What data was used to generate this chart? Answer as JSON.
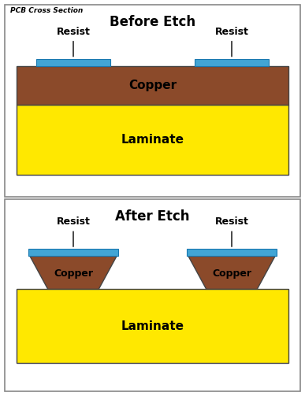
{
  "fig_width": 3.87,
  "fig_height": 5.03,
  "dpi": 100,
  "bg_color": "#ffffff",
  "copper_color": "#8B4A2A",
  "laminate_color": "#FFE800",
  "resist_color": "#42A5D5",
  "text_color": "#000000",
  "title_top": "PCB Cross Section",
  "panel1_title": "Before Etch",
  "panel2_title": "After Etch",
  "label_copper": "Copper",
  "label_laminate": "Laminate",
  "label_resist": "Resist"
}
